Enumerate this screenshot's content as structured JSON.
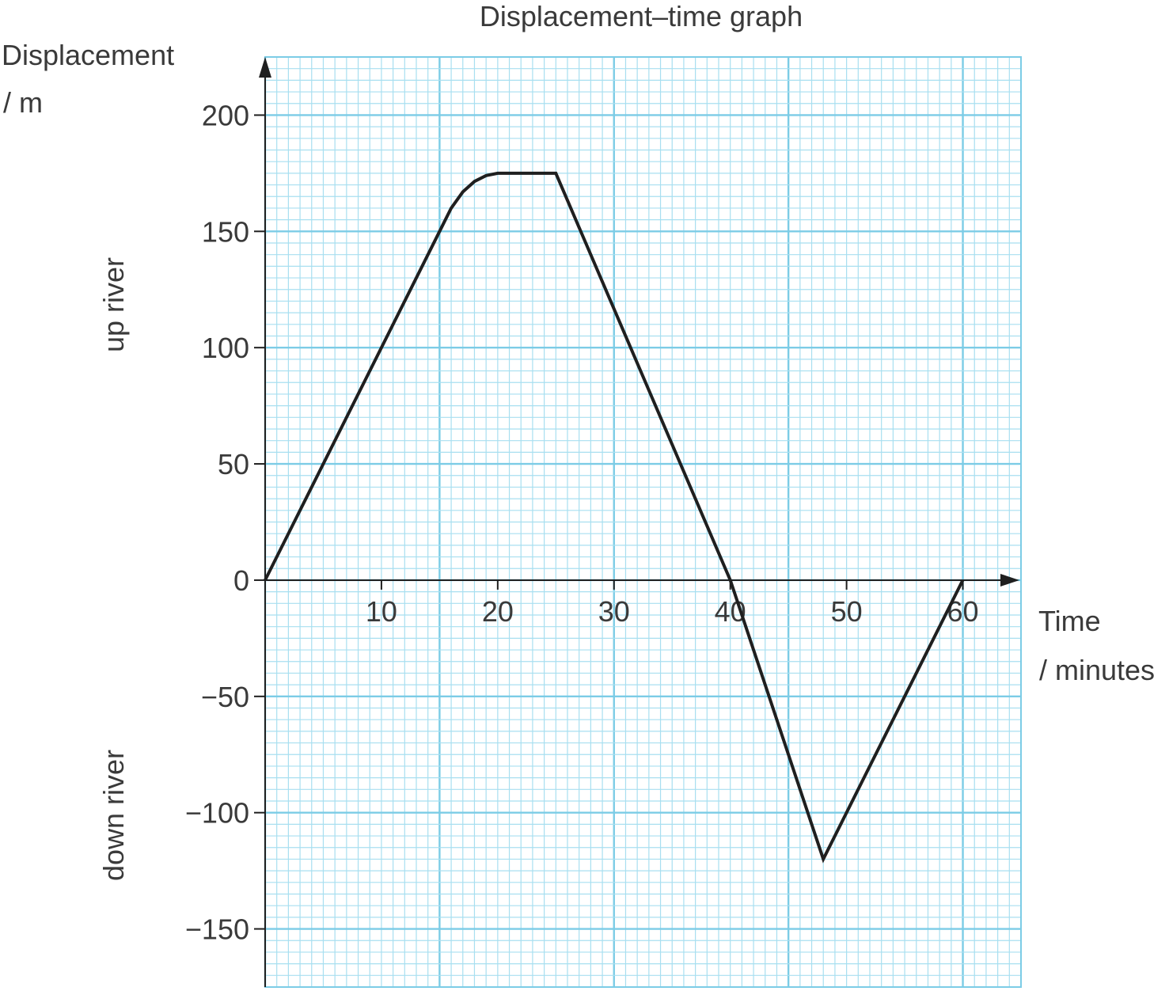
{
  "chart_data": {
    "type": "line",
    "title": "Displacement–time graph",
    "ylabel": "Displacement",
    "ylabel_unit": "/ m",
    "xlabel": "Time",
    "xlabel_unit": "/ minutes",
    "y_annotations": {
      "positive": "up river",
      "negative": "down river"
    },
    "xlim": [
      0,
      65
    ],
    "ylim": [
      -175,
      225
    ],
    "x_ticks": [
      10,
      20,
      30,
      40,
      50,
      60
    ],
    "y_ticks": [
      -150,
      -100,
      -50,
      0,
      50,
      100,
      150,
      200
    ],
    "grid": true,
    "series": [
      {
        "points": [
          [
            0,
            0
          ],
          [
            15,
            150
          ],
          [
            16,
            160
          ],
          [
            17,
            167
          ],
          [
            18,
            171.5
          ],
          [
            19,
            174
          ],
          [
            20,
            175
          ],
          [
            25,
            175
          ],
          [
            40,
            0
          ],
          [
            48,
            -120
          ],
          [
            60,
            0
          ]
        ]
      }
    ]
  }
}
